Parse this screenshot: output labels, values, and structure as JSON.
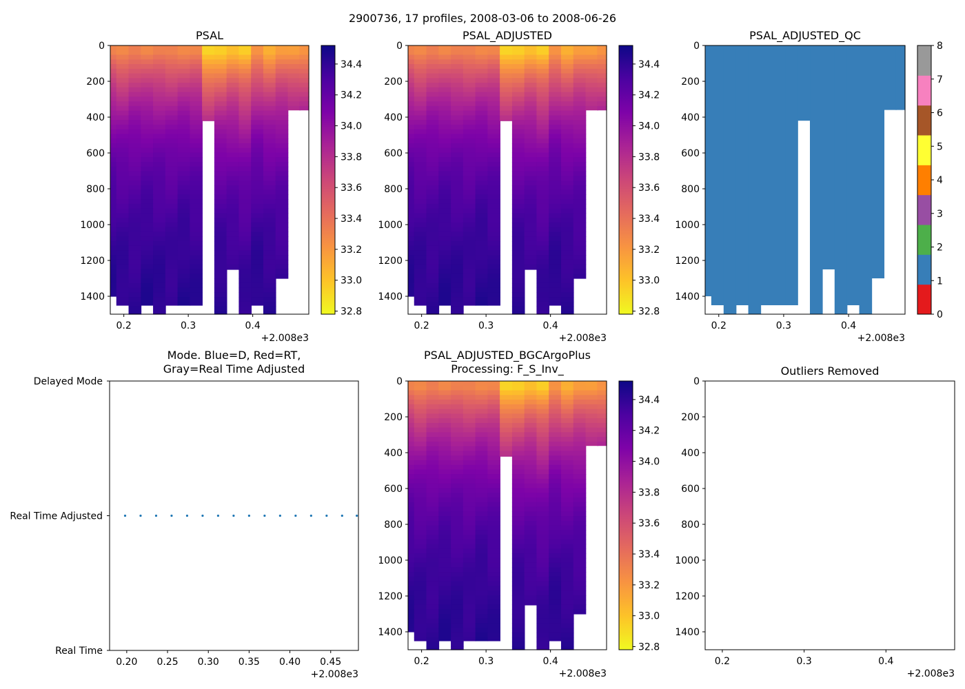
{
  "figure_title": "2900736, 17 profiles, 2008-03-06 to 2008-06-26",
  "colors": {
    "qc_1": "#377eb8",
    "mode_points": "#1f77b4",
    "qc_scale": [
      "#e41a1c",
      "#377eb8",
      "#4daf4a",
      "#984ea3",
      "#ff7f00",
      "#ffff33",
      "#a65628",
      "#f781bf",
      "#999999"
    ]
  },
  "chart_data": [
    {
      "type": "heatmap",
      "title": "PSAL",
      "variable": "PSAL",
      "x": [
        2008.179,
        2008.198,
        2008.217,
        2008.236,
        2008.255,
        2008.274,
        2008.293,
        2008.312,
        2008.331,
        2008.35,
        2008.369,
        2008.388,
        2008.407,
        2008.426,
        2008.445,
        2008.464,
        2008.482
      ],
      "xticks": [
        "0.2",
        "0.3",
        "0.4"
      ],
      "x_offset_label": "+2.008e3",
      "xlim": [
        2008.179,
        2008.487
      ],
      "ylim": [
        1500,
        0
      ],
      "yticks": [
        "0",
        "200",
        "400",
        "600",
        "800",
        "1000",
        "1200",
        "1400"
      ],
      "depth_max": [
        1400,
        1450,
        1500,
        1450,
        1500,
        1450,
        1450,
        1450,
        420,
        1500,
        1250,
        1500,
        1450,
        1500,
        1300,
        360,
        360
      ],
      "surface_salinity": [
        33.3,
        33.25,
        33.35,
        33.3,
        33.3,
        33.3,
        33.3,
        33.3,
        32.9,
        32.95,
        33.05,
        32.95,
        33.2,
        33.1,
        33.2,
        33.15,
        33.2
      ],
      "colorbar": {
        "label_ticks": [
          "32.8",
          "33.0",
          "33.2",
          "33.4",
          "33.6",
          "33.8",
          "34.0",
          "34.2",
          "34.4"
        ],
        "vmin": 32.78,
        "vmax": 34.52,
        "colormap": "plasma_r"
      }
    },
    {
      "type": "heatmap",
      "title": "PSAL_ADJUSTED",
      "variable": "PSAL_ADJUSTED",
      "x": [
        2008.179,
        2008.198,
        2008.217,
        2008.236,
        2008.255,
        2008.274,
        2008.293,
        2008.312,
        2008.331,
        2008.35,
        2008.369,
        2008.388,
        2008.407,
        2008.426,
        2008.445,
        2008.464,
        2008.482
      ],
      "xticks": [
        "0.2",
        "0.3",
        "0.4"
      ],
      "x_offset_label": "+2.008e3",
      "xlim": [
        2008.179,
        2008.487
      ],
      "ylim": [
        1500,
        0
      ],
      "yticks": [
        "0",
        "200",
        "400",
        "600",
        "800",
        "1000",
        "1200",
        "1400"
      ],
      "depth_max": [
        1400,
        1450,
        1500,
        1450,
        1500,
        1450,
        1450,
        1450,
        420,
        1500,
        1250,
        1500,
        1450,
        1500,
        1300,
        360,
        360
      ],
      "surface_salinity": [
        33.3,
        33.25,
        33.35,
        33.3,
        33.3,
        33.3,
        33.3,
        33.3,
        32.9,
        32.95,
        33.05,
        32.95,
        33.2,
        33.1,
        33.2,
        33.15,
        33.2
      ],
      "colorbar": {
        "label_ticks": [
          "32.8",
          "33.0",
          "33.2",
          "33.4",
          "33.6",
          "33.8",
          "34.0",
          "34.2",
          "34.4"
        ],
        "vmin": 32.78,
        "vmax": 34.52,
        "colormap": "plasma_r"
      }
    },
    {
      "type": "heatmap",
      "title": "PSAL_ADJUSTED_QC",
      "variable": "PSAL_ADJUSTED_QC",
      "qc_value": 1,
      "x": [
        2008.179,
        2008.198,
        2008.217,
        2008.236,
        2008.255,
        2008.274,
        2008.293,
        2008.312,
        2008.331,
        2008.35,
        2008.369,
        2008.388,
        2008.407,
        2008.426,
        2008.445,
        2008.464,
        2008.482
      ],
      "xticks": [
        "0.2",
        "0.3",
        "0.4"
      ],
      "x_offset_label": "+2.008e3",
      "xlim": [
        2008.179,
        2008.487
      ],
      "ylim": [
        1500,
        0
      ],
      "yticks": [
        "0",
        "200",
        "400",
        "600",
        "800",
        "1000",
        "1200",
        "1400"
      ],
      "depth_max": [
        1400,
        1450,
        1500,
        1450,
        1500,
        1450,
        1450,
        1450,
        420,
        1500,
        1250,
        1500,
        1450,
        1500,
        1300,
        360,
        360
      ],
      "colorbar": {
        "label_ticks": [
          "0",
          "1",
          "2",
          "3",
          "4",
          "5",
          "6",
          "7",
          "8"
        ],
        "vmin": 0,
        "vmax": 8
      }
    },
    {
      "type": "scatter",
      "title": "Mode. Blue=D, Red=RT,",
      "title_line2": "Gray=Real Time Adjusted",
      "x": [
        2008.198,
        2008.217,
        2008.236,
        2008.255,
        2008.274,
        2008.293,
        2008.312,
        2008.331,
        2008.35,
        2008.369,
        2008.388,
        2008.407,
        2008.426,
        2008.445,
        2008.464,
        2008.482
      ],
      "y": [
        1,
        1,
        1,
        1,
        1,
        1,
        1,
        1,
        1,
        1,
        1,
        1,
        1,
        1,
        1,
        1
      ],
      "xlim": [
        2008.179,
        2008.484
      ],
      "xticks": [
        "0.20",
        "0.25",
        "0.30",
        "0.35",
        "0.40",
        "0.45"
      ],
      "xtick_values": [
        2008.2,
        2008.25,
        2008.3,
        2008.35,
        2008.4,
        2008.45
      ],
      "x_offset_label": "+2.008e3",
      "ylim": [
        0,
        2
      ],
      "ytick_labels": [
        "Real Time",
        "Real Time Adjusted",
        "Delayed Mode"
      ]
    },
    {
      "type": "heatmap",
      "title": "PSAL_ADJUSTED_BGCArgoPlus",
      "title_line2": "Processing: F_S_Inv_",
      "variable": "PSAL_ADJUSTED_BGCArgoPlus",
      "x": [
        2008.179,
        2008.198,
        2008.217,
        2008.236,
        2008.255,
        2008.274,
        2008.293,
        2008.312,
        2008.331,
        2008.35,
        2008.369,
        2008.388,
        2008.407,
        2008.426,
        2008.445,
        2008.464,
        2008.482
      ],
      "xticks": [
        "0.2",
        "0.3",
        "0.4"
      ],
      "x_offset_label": "+2.008e3",
      "xlim": [
        2008.179,
        2008.487
      ],
      "ylim": [
        1500,
        0
      ],
      "yticks": [
        "0",
        "200",
        "400",
        "600",
        "800",
        "1000",
        "1200",
        "1400"
      ],
      "depth_max": [
        1400,
        1450,
        1500,
        1450,
        1500,
        1450,
        1450,
        1450,
        420,
        1500,
        1250,
        1500,
        1450,
        1500,
        1300,
        360,
        360
      ],
      "surface_salinity": [
        33.3,
        33.25,
        33.35,
        33.3,
        33.3,
        33.3,
        33.3,
        33.3,
        32.9,
        32.95,
        33.05,
        32.95,
        33.2,
        33.1,
        33.2,
        33.15,
        33.2
      ],
      "colorbar": {
        "label_ticks": [
          "32.8",
          "33.0",
          "33.2",
          "33.4",
          "33.6",
          "33.8",
          "34.0",
          "34.2",
          "34.4"
        ],
        "vmin": 32.78,
        "vmax": 34.52,
        "colormap": "plasma_r"
      }
    },
    {
      "type": "scatter",
      "title": "Outliers Removed",
      "x": [],
      "y": [],
      "xlim": [
        2008.179,
        2008.484
      ],
      "xticks": [
        "0.2",
        "0.3",
        "0.4"
      ],
      "xtick_values": [
        2008.2,
        2008.3,
        2008.4
      ],
      "x_offset_label": "+2.008e3",
      "ylim": [
        1500,
        0
      ],
      "yticks": [
        "0",
        "200",
        "400",
        "600",
        "800",
        "1000",
        "1200",
        "1400"
      ]
    }
  ]
}
